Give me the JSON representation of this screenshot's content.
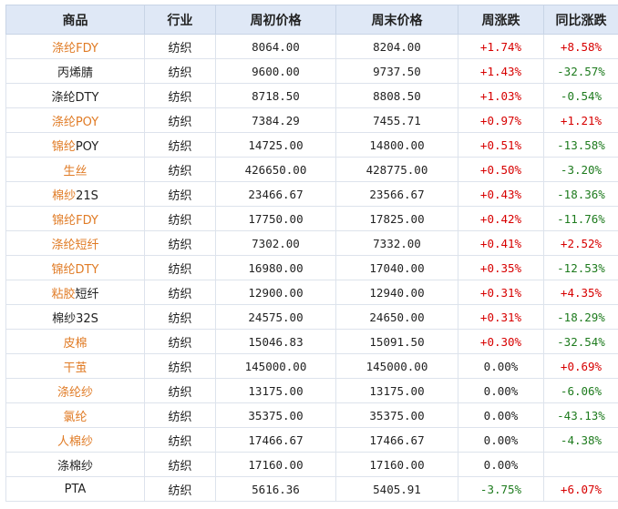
{
  "headers": [
    "商品",
    "行业",
    "周初价格",
    "周末价格",
    "周涨跌",
    "同比涨跌"
  ],
  "rows": [
    {
      "name_a": "涤纶FDY",
      "name_b": "",
      "name_a_link": true,
      "industry": "纺织",
      "start": "8064.00",
      "end": "8204.00",
      "weekly": "+1.74%",
      "weekly_dir": "up",
      "yoy": "+8.58%",
      "yoy_dir": "up"
    },
    {
      "name_a": "",
      "name_b": "丙烯腈",
      "name_a_link": false,
      "industry": "纺织",
      "start": "9600.00",
      "end": "9737.50",
      "weekly": "+1.43%",
      "weekly_dir": "up",
      "yoy": "-32.57%",
      "yoy_dir": "down"
    },
    {
      "name_a": "",
      "name_b": "涤纶DTY",
      "name_a_link": false,
      "industry": "纺织",
      "start": "8718.50",
      "end": "8808.50",
      "weekly": "+1.03%",
      "weekly_dir": "up",
      "yoy": "-0.54%",
      "yoy_dir": "down"
    },
    {
      "name_a": "涤纶POY",
      "name_b": "",
      "name_a_link": true,
      "industry": "纺织",
      "start": "7384.29",
      "end": "7455.71",
      "weekly": "+0.97%",
      "weekly_dir": "up",
      "yoy": "+1.21%",
      "yoy_dir": "up"
    },
    {
      "name_a": "锦纶",
      "name_b": "POY",
      "name_a_link": true,
      "industry": "纺织",
      "start": "14725.00",
      "end": "14800.00",
      "weekly": "+0.51%",
      "weekly_dir": "up",
      "yoy": "-13.58%",
      "yoy_dir": "down"
    },
    {
      "name_a": "生丝",
      "name_b": "",
      "name_a_link": true,
      "industry": "纺织",
      "start": "426650.00",
      "end": "428775.00",
      "weekly": "+0.50%",
      "weekly_dir": "up",
      "yoy": "-3.20%",
      "yoy_dir": "down"
    },
    {
      "name_a": "棉纱",
      "name_b": "21S",
      "name_a_link": true,
      "industry": "纺织",
      "start": "23466.67",
      "end": "23566.67",
      "weekly": "+0.43%",
      "weekly_dir": "up",
      "yoy": "-18.36%",
      "yoy_dir": "down"
    },
    {
      "name_a": "锦纶FDY",
      "name_b": "",
      "name_a_link": true,
      "industry": "纺织",
      "start": "17750.00",
      "end": "17825.00",
      "weekly": "+0.42%",
      "weekly_dir": "up",
      "yoy": "-11.76%",
      "yoy_dir": "down"
    },
    {
      "name_a": "涤纶短纤",
      "name_b": "",
      "name_a_link": true,
      "industry": "纺织",
      "start": "7302.00",
      "end": "7332.00",
      "weekly": "+0.41%",
      "weekly_dir": "up",
      "yoy": "+2.52%",
      "yoy_dir": "up"
    },
    {
      "name_a": "锦纶DTY",
      "name_b": "",
      "name_a_link": true,
      "industry": "纺织",
      "start": "16980.00",
      "end": "17040.00",
      "weekly": "+0.35%",
      "weekly_dir": "up",
      "yoy": "-12.53%",
      "yoy_dir": "down"
    },
    {
      "name_a": "粘胶",
      "name_b": "短纤",
      "name_a_link": true,
      "industry": "纺织",
      "start": "12900.00",
      "end": "12940.00",
      "weekly": "+0.31%",
      "weekly_dir": "up",
      "yoy": "+4.35%",
      "yoy_dir": "up"
    },
    {
      "name_a": "",
      "name_b": "棉纱32S",
      "name_a_link": false,
      "industry": "纺织",
      "start": "24575.00",
      "end": "24650.00",
      "weekly": "+0.31%",
      "weekly_dir": "up",
      "yoy": "-18.29%",
      "yoy_dir": "down"
    },
    {
      "name_a": "皮棉",
      "name_b": "",
      "name_a_link": true,
      "industry": "纺织",
      "start": "15046.83",
      "end": "15091.50",
      "weekly": "+0.30%",
      "weekly_dir": "up",
      "yoy": "-32.54%",
      "yoy_dir": "down"
    },
    {
      "name_a": "干茧",
      "name_b": "",
      "name_a_link": true,
      "industry": "纺织",
      "start": "145000.00",
      "end": "145000.00",
      "weekly": "0.00%",
      "weekly_dir": "flat",
      "yoy": "+0.69%",
      "yoy_dir": "up"
    },
    {
      "name_a": "涤纶纱",
      "name_b": "",
      "name_a_link": true,
      "industry": "纺织",
      "start": "13175.00",
      "end": "13175.00",
      "weekly": "0.00%",
      "weekly_dir": "flat",
      "yoy": "-6.06%",
      "yoy_dir": "down"
    },
    {
      "name_a": "氯纶",
      "name_b": "",
      "name_a_link": true,
      "industry": "纺织",
      "start": "35375.00",
      "end": "35375.00",
      "weekly": "0.00%",
      "weekly_dir": "flat",
      "yoy": "-43.13%",
      "yoy_dir": "down"
    },
    {
      "name_a": "人棉纱",
      "name_b": "",
      "name_a_link": true,
      "industry": "纺织",
      "start": "17466.67",
      "end": "17466.67",
      "weekly": "0.00%",
      "weekly_dir": "flat",
      "yoy": "-4.38%",
      "yoy_dir": "down"
    },
    {
      "name_a": "",
      "name_b": "涤棉纱",
      "name_a_link": false,
      "industry": "纺织",
      "start": "17160.00",
      "end": "17160.00",
      "weekly": "0.00%",
      "weekly_dir": "flat",
      "yoy": "",
      "yoy_dir": "flat"
    },
    {
      "name_a": "",
      "name_b": "PTA",
      "name_a_link": false,
      "industry": "纺织",
      "start": "5616.36",
      "end": "5405.91",
      "weekly": "-3.75%",
      "weekly_dir": "down",
      "yoy": "+6.07%",
      "yoy_dir": "up"
    }
  ]
}
